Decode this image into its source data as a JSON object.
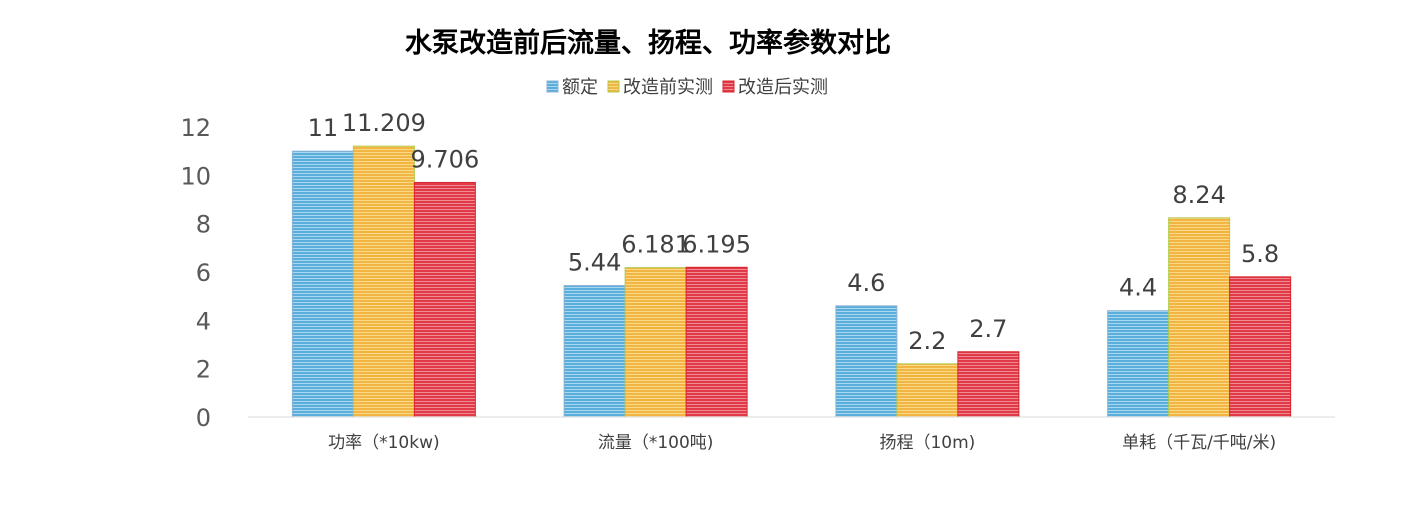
{
  "chart_data": {
    "type": "bar",
    "title": "水泵改造前后流量、扬程、功率参数对比",
    "xlabel": "",
    "ylabel": "",
    "ylim": [
      0,
      12
    ],
    "yticks": [
      0,
      2,
      4,
      6,
      8,
      10,
      12
    ],
    "grid": false,
    "legend_position": "top-center",
    "categories": [
      "功率（*10kw)",
      "流量（*100吨)",
      "扬程（10m)",
      "单耗（千瓦/千吨/米)"
    ],
    "series": [
      {
        "name": "额定",
        "color": "#8fb3d3",
        "fill": "#5aaedc",
        "values": [
          11,
          5.44,
          4.6,
          4.4
        ],
        "labels": [
          "11",
          "5.44",
          "4.6",
          "4.4"
        ]
      },
      {
        "name": "改造前实测",
        "color": "#b5c94a",
        "fill": "#f2b541",
        "values": [
          11.209,
          6.181,
          2.2,
          8.24
        ],
        "labels": [
          "11.209",
          "6.181",
          "2.2",
          "8.24"
        ]
      },
      {
        "name": "改造后实测",
        "color": "#d9252a",
        "fill": "#e03a48",
        "values": [
          9.706,
          6.195,
          2.7,
          5.8
        ],
        "labels": [
          "9.706",
          "6.195",
          "2.7",
          "5.8"
        ]
      }
    ]
  }
}
